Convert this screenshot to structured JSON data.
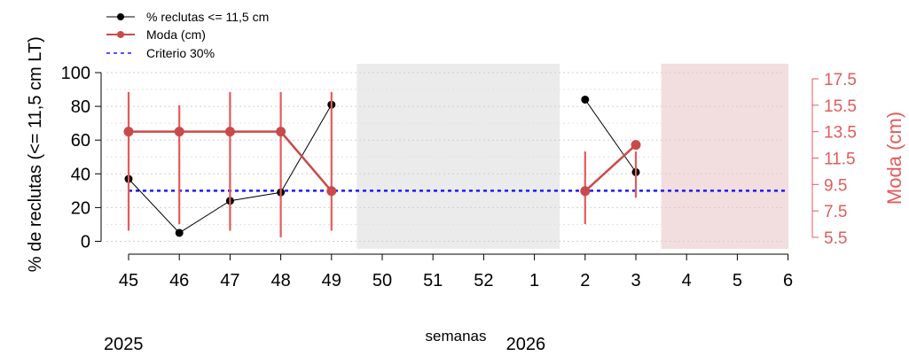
{
  "chart_data": {
    "type": "line",
    "xlabel": "semanas",
    "ylabel": "% de reclutas (<= 11,5 cm LT)",
    "ylabel_right": "Moda (cm)",
    "categories": [
      "45",
      "46",
      "47",
      "48",
      "49",
      "50",
      "51",
      "52",
      "1",
      "2",
      "3",
      "4",
      "5",
      "6"
    ],
    "year_labels": [
      {
        "text": "2025",
        "at_category": "45"
      },
      {
        "text": "2026",
        "at_category": "1"
      }
    ],
    "ylim": [
      0,
      100
    ],
    "yticks": [
      0,
      20,
      40,
      60,
      80,
      100
    ],
    "ylim_right": [
      5.5,
      17.5
    ],
    "yticks_right": [
      5.5,
      7.5,
      9.5,
      11.5,
      13.5,
      15.5,
      17.5
    ],
    "grid": true,
    "legend_position": "top-left",
    "legend": [
      {
        "label": "% reclutas <= 11,5 cm",
        "color": "#000000",
        "style": "line-point"
      },
      {
        "label": "Moda (cm)",
        "color": "#c94a4a",
        "style": "line-point"
      },
      {
        "label": "Criterio 30%",
        "color": "#1a1aff",
        "style": "dashed"
      }
    ],
    "series": [
      {
        "name": "% reclutas <= 11,5 cm",
        "axis": "left",
        "color": "#000000",
        "values": [
          37,
          5,
          24,
          29,
          81,
          null,
          null,
          null,
          null,
          84,
          41,
          null,
          null,
          null
        ]
      },
      {
        "name": "Moda (cm)",
        "axis": "right",
        "color": "#c94a4a",
        "values": [
          13.5,
          13.5,
          13.5,
          13.5,
          9.0,
          null,
          null,
          null,
          null,
          9.0,
          12.5,
          null,
          null,
          null
        ],
        "errorbars": [
          [
            6.0,
            16.5
          ],
          [
            6.5,
            15.5
          ],
          [
            6.0,
            16.5
          ],
          [
            5.5,
            16.5
          ],
          [
            6.0,
            16.5
          ],
          null,
          null,
          null,
          null,
          [
            6.5,
            12.0
          ],
          [
            8.5,
            12.0
          ],
          null,
          null,
          null
        ]
      }
    ],
    "reference_line": {
      "name": "Criterio 30%",
      "value": 30,
      "axis": "left",
      "style": "dashed",
      "color": "#1a1aff",
      "from_category": "45",
      "to_category": "6"
    },
    "shaded_regions": [
      {
        "from": "50",
        "to": "1",
        "color": "#ebebeb"
      },
      {
        "from": "4",
        "to": "6",
        "color": "#f2dede"
      }
    ]
  }
}
